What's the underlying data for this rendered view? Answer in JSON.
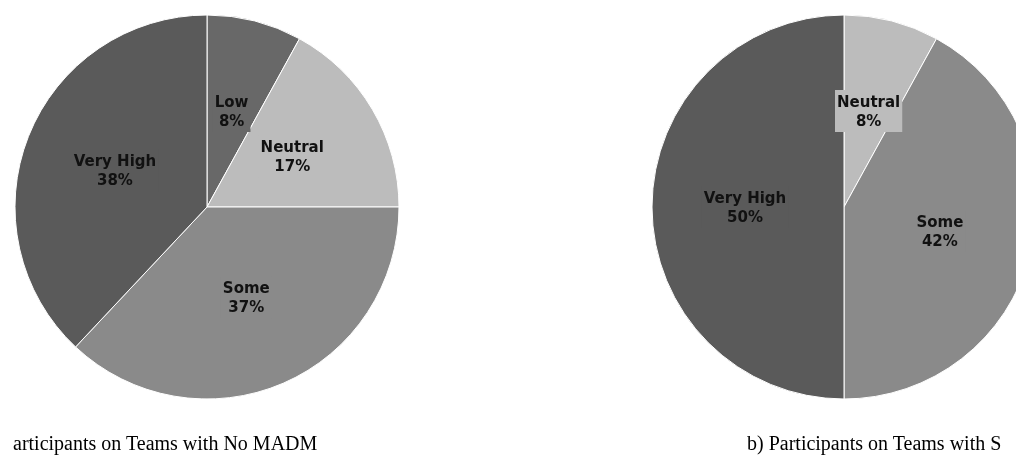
{
  "chart_data": [
    {
      "type": "pie",
      "title": "articipants on Teams with No MADM",
      "categories": [
        "Low",
        "Neutral",
        "Some",
        "Very High"
      ],
      "values": [
        8,
        17,
        37,
        38
      ],
      "colors": [
        "#686868",
        "#bcbcbc",
        "#8a8a8a",
        "#5a5a5a"
      ],
      "value_labels": [
        "8%",
        "17%",
        "37%",
        "38%"
      ],
      "legend": false
    },
    {
      "type": "pie",
      "title": "b) Participants on Teams with S",
      "categories": [
        "Neutral",
        "Some",
        "Very High"
      ],
      "values": [
        8,
        42,
        50
      ],
      "colors": [
        "#bcbcbc",
        "#8a8a8a",
        "#5a5a5a"
      ],
      "value_labels": [
        "8%",
        "42%",
        "50%"
      ],
      "legend": false
    }
  ]
}
